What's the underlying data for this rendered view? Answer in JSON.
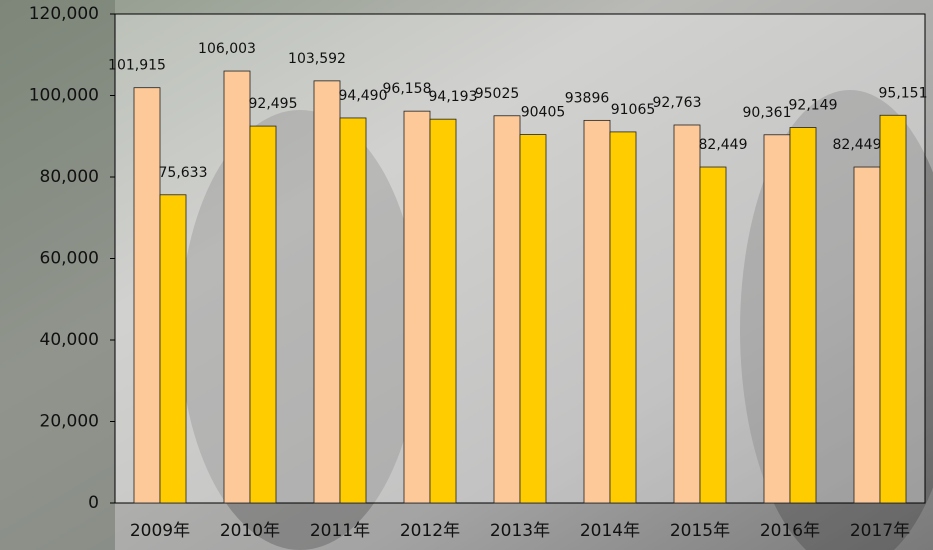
{
  "chart_data": {
    "type": "bar",
    "categories": [
      "2009年",
      "2010年",
      "2011年",
      "2012年",
      "2013年",
      "2014年",
      "2015年",
      "2016年",
      "2017年"
    ],
    "series": [
      {
        "color": "#fdc999",
        "values": [
          101915,
          106003,
          103592,
          96158,
          95025,
          93896,
          92763,
          90361,
          82449
        ],
        "value_labels": [
          "101,915",
          "106,003",
          "103,592",
          "96,158",
          "95025",
          "93896",
          "92,763",
          "90,361",
          "82,449"
        ]
      },
      {
        "color": "#ffcc00",
        "values": [
          75633,
          92495,
          94490,
          94193,
          90405,
          91065,
          82449,
          92149,
          95151
        ],
        "value_labels": [
          "75,633",
          "92,495",
          "94,490",
          "94,193",
          "90405",
          "91065",
          "82,449",
          "92,149",
          "95,151"
        ]
      }
    ],
    "ylim": [
      0,
      120000
    ],
    "yticks": [
      0,
      {
        "value": 20000,
        "label": "20,000"
      },
      {
        "value": 40000,
        "label": "40,000"
      },
      {
        "value": 60000,
        "label": "60,000"
      },
      {
        "value": 80000,
        "label": "80,000"
      },
      {
        "value": 100000,
        "label": "100,000"
      },
      {
        "value": 120000,
        "label": "120,000"
      }
    ]
  }
}
